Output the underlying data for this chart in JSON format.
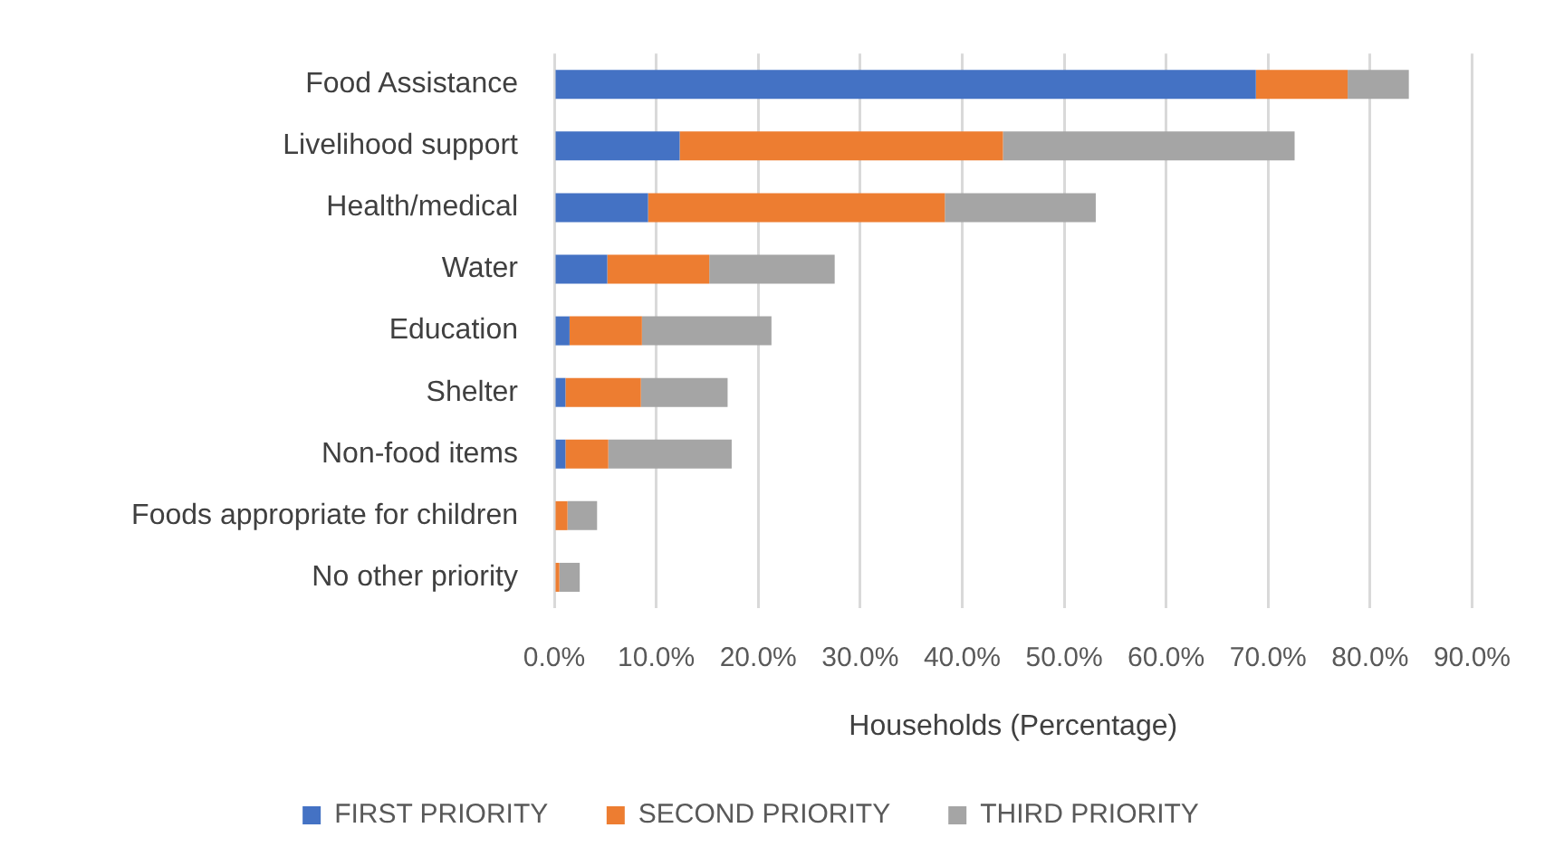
{
  "chart_data": {
    "type": "bar",
    "orientation": "horizontal",
    "stacked": true,
    "categories": [
      "Food Assistance",
      "Livelihood support",
      "Health/medical",
      "Water",
      "Education",
      "Shelter",
      "Non-food items",
      "Foods appropriate for children",
      "No other priority"
    ],
    "series": [
      {
        "name": "FIRST PRIORITY",
        "color": "#4472c4",
        "values": [
          68.8,
          12.3,
          9.2,
          5.2,
          1.5,
          1.1,
          1.1,
          0,
          0
        ]
      },
      {
        "name": "SECOND PRIORITY",
        "color": "#ed7d31",
        "values": [
          9.0,
          31.7,
          29.1,
          10.0,
          7.1,
          7.4,
          4.2,
          1.3,
          0.5
        ]
      },
      {
        "name": "THIRD PRIORITY",
        "color": "#a5a5a5",
        "values": [
          6.0,
          28.6,
          14.8,
          12.3,
          12.7,
          8.5,
          12.1,
          2.9,
          2.0
        ]
      }
    ],
    "xlabel": "Households (Percentage)",
    "xlim": [
      0,
      90
    ],
    "xticks": [
      {
        "value": 0,
        "label": "0.0%"
      },
      {
        "value": 10,
        "label": "10.0%"
      },
      {
        "value": 20,
        "label": "20.0%"
      },
      {
        "value": 30,
        "label": "30.0%"
      },
      {
        "value": 40,
        "label": "40.0%"
      },
      {
        "value": 50,
        "label": "50.0%"
      },
      {
        "value": 60,
        "label": "60.0%"
      },
      {
        "value": 70,
        "label": "70.0%"
      },
      {
        "value": 80,
        "label": "80.0%"
      },
      {
        "value": 90,
        "label": "90.0%"
      }
    ],
    "grid": "x",
    "legend": "bottom"
  }
}
